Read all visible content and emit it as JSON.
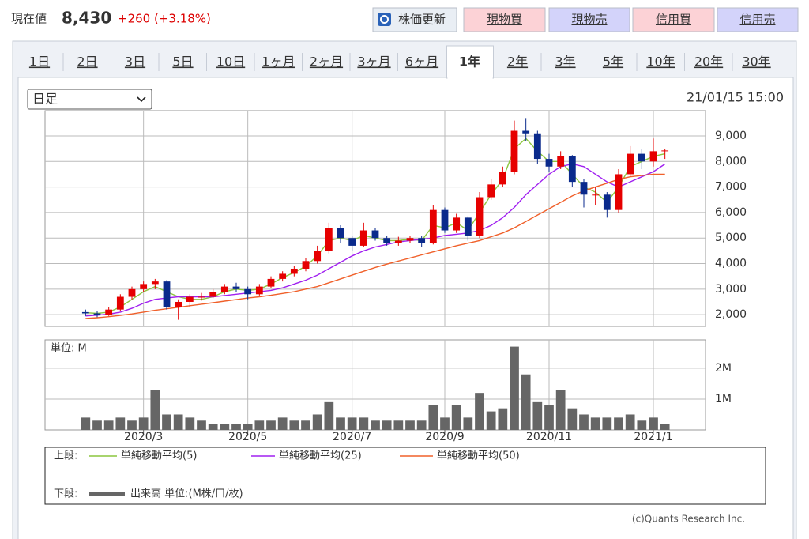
{
  "header": {
    "label": "現在値",
    "price": "8,430",
    "change": "+260 (+3.18%)"
  },
  "buttons": [
    "株価更新",
    "現物買",
    "現物売",
    "信用買",
    "信用売"
  ],
  "tabs": [
    "1日",
    "2日",
    "3日",
    "5日",
    "10日",
    "1ヶ月",
    "2ヶ月",
    "3ヶ月",
    "6ヶ月",
    "1年",
    "2年",
    "3年",
    "5年",
    "10年",
    "20年",
    "30年"
  ],
  "selected_tab": 9,
  "select": "日足",
  "timestamp": "21/01/15 15:00",
  "chart_data": {
    "type": "candlestick",
    "grid": true,
    "upper_label": "上段:",
    "categories": [
      null,
      null,
      null,
      null,
      null,
      null,
      null,
      null,
      "2020/3",
      null,
      null,
      null,
      null,
      null,
      null,
      null,
      null,
      "2020/5",
      null,
      null,
      null,
      null,
      null,
      null,
      null,
      null,
      "2020/7",
      null,
      null,
      null,
      null,
      null,
      null,
      null,
      "2020/9",
      null,
      null,
      null,
      null,
      null,
      null,
      null,
      null,
      "2020/11",
      null,
      null,
      null,
      null,
      null,
      null,
      null,
      null,
      "2021/1",
      null,
      null,
      null,
      null
    ],
    "up_color": "#e60000",
    "down_color": "#0a2a8c",
    "ohlc": [
      null,
      null,
      null,
      [
        2100,
        2200,
        1950,
        2050
      ],
      [
        2050,
        2150,
        1900,
        2000
      ],
      [
        2000,
        2300,
        1950,
        2200
      ],
      [
        2200,
        2800,
        2150,
        2700
      ],
      [
        2700,
        3100,
        2600,
        3000
      ],
      [
        3000,
        3300,
        2900,
        3200
      ],
      [
        3200,
        3400,
        3000,
        3300
      ],
      [
        3300,
        3350,
        2200,
        2300
      ],
      [
        2300,
        2600,
        1800,
        2500
      ],
      [
        2500,
        2800,
        2300,
        2700
      ],
      [
        2700,
        2850,
        2550,
        2700
      ],
      [
        2700,
        3000,
        2650,
        2900
      ],
      [
        2900,
        3200,
        2800,
        3100
      ],
      [
        3100,
        3250,
        2900,
        3000
      ],
      [
        3000,
        3100,
        2600,
        2800
      ],
      [
        2800,
        3200,
        2750,
        3100
      ],
      [
        3100,
        3500,
        3050,
        3400
      ],
      [
        3400,
        3700,
        3300,
        3600
      ],
      [
        3600,
        3900,
        3500,
        3800
      ],
      [
        3800,
        4200,
        3700,
        4100
      ],
      [
        4100,
        4700,
        4000,
        4500
      ],
      [
        4500,
        5600,
        4400,
        5400
      ],
      [
        5400,
        5500,
        4800,
        5000
      ],
      [
        5000,
        5100,
        4500,
        4700
      ],
      [
        4700,
        5600,
        4650,
        5300
      ],
      [
        5300,
        5400,
        4900,
        5000
      ],
      [
        5000,
        5100,
        4700,
        4800
      ],
      [
        4800,
        5050,
        4700,
        4900
      ],
      [
        4900,
        5100,
        4800,
        5000
      ],
      [
        5000,
        5100,
        4650,
        4800
      ],
      [
        4800,
        6300,
        4750,
        6100
      ],
      [
        6100,
        6200,
        5200,
        5300
      ],
      [
        5300,
        5950,
        5200,
        5800
      ],
      [
        5800,
        5850,
        4900,
        5100
      ],
      [
        5100,
        6800,
        5000,
        6600
      ],
      [
        6600,
        7300,
        6500,
        7100
      ],
      [
        7100,
        7800,
        7000,
        7600
      ],
      [
        7600,
        9600,
        7500,
        9200
      ],
      [
        9200,
        9700,
        8800,
        9100
      ],
      [
        9100,
        9200,
        7900,
        8100
      ],
      [
        8100,
        8300,
        7600,
        7800
      ],
      [
        7800,
        8400,
        7700,
        8200
      ],
      [
        8200,
        8250,
        7000,
        7200
      ],
      [
        7200,
        7300,
        6200,
        6700
      ],
      [
        6700,
        7000,
        6300,
        6700
      ],
      [
        6700,
        6800,
        5800,
        6100
      ],
      [
        6100,
        7700,
        6000,
        7500
      ],
      [
        7500,
        8600,
        7400,
        8300
      ],
      [
        8300,
        8500,
        7700,
        8000
      ],
      [
        8000,
        8900,
        7800,
        8400
      ],
      [
        8400,
        8500,
        8100,
        8430
      ],
      null,
      null,
      null
    ],
    "series": [
      {
        "name": "単純移動平均(5)",
        "color": "#8cc63e",
        "values": [
          null,
          null,
          null,
          2080,
          2050,
          2100,
          2300,
          2600,
          2900,
          3100,
          2900,
          2700,
          2600,
          2600,
          2700,
          2900,
          3000,
          2950,
          3000,
          3200,
          3450,
          3650,
          3900,
          4300,
          4900,
          5000,
          4900,
          5100,
          5000,
          4900,
          4900,
          4950,
          4900,
          5500,
          5400,
          5600,
          5300,
          6000,
          6700,
          7300,
          8500,
          8900,
          8400,
          8000,
          8000,
          7500,
          7000,
          6800,
          6400,
          7000,
          7800,
          8000,
          8200,
          8300,
          null,
          null,
          null
        ]
      },
      {
        "name": "単純移動平均(25)",
        "color": "#a020f0",
        "values": [
          null,
          null,
          null,
          1950,
          1980,
          2020,
          2100,
          2250,
          2450,
          2600,
          2650,
          2700,
          2700,
          2700,
          2700,
          2750,
          2800,
          2850,
          2900,
          2950,
          3050,
          3200,
          3350,
          3550,
          3800,
          4050,
          4300,
          4500,
          4650,
          4750,
          4850,
          4900,
          4950,
          5000,
          5100,
          5150,
          5200,
          5300,
          5500,
          5800,
          6200,
          6700,
          7100,
          7500,
          7800,
          7900,
          7800,
          7500,
          7200,
          7000,
          7200,
          7400,
          7600,
          7900,
          null,
          null,
          null
        ]
      },
      {
        "name": "単純移動平均(50)",
        "color": "#f0602a",
        "values": [
          null,
          null,
          null,
          1850,
          1880,
          1920,
          1970,
          2030,
          2100,
          2170,
          2230,
          2290,
          2350,
          2410,
          2470,
          2530,
          2590,
          2650,
          2700,
          2760,
          2830,
          2900,
          3000,
          3100,
          3250,
          3400,
          3550,
          3700,
          3850,
          3980,
          4100,
          4220,
          4340,
          4460,
          4580,
          4700,
          4800,
          4900,
          5050,
          5200,
          5400,
          5650,
          5900,
          6150,
          6400,
          6650,
          6850,
          7000,
          7150,
          7300,
          7400,
          7450,
          7500,
          7500,
          null,
          null,
          null
        ]
      }
    ],
    "ylim": [
      1540,
      9990
    ],
    "yticks": [
      {
        "value": 2000,
        "label": "2,000"
      },
      {
        "value": 3000,
        "label": "3,000"
      },
      {
        "value": 4000,
        "label": "4,000"
      },
      {
        "value": 5000,
        "label": "5,000"
      },
      {
        "value": 6000,
        "label": "6,000"
      },
      {
        "value": 7000,
        "label": "7,000"
      },
      {
        "value": 8000,
        "label": "8,000"
      },
      {
        "value": 9000,
        "label": "9,000"
      }
    ],
    "volume": {
      "panel_label": "下段:",
      "name": "出来高 単位:(M株/口/枚)",
      "unit_label": "単位: M",
      "color": "#666666",
      "values": [
        null,
        null,
        null,
        0.4,
        0.3,
        0.3,
        0.4,
        0.3,
        0.4,
        1.3,
        0.5,
        0.5,
        0.4,
        0.3,
        0.2,
        0.2,
        0.2,
        0.2,
        0.3,
        0.3,
        0.4,
        0.3,
        0.3,
        0.5,
        0.9,
        0.4,
        0.4,
        0.4,
        0.3,
        0.3,
        0.3,
        0.3,
        0.3,
        0.8,
        0.4,
        0.8,
        0.4,
        1.2,
        0.6,
        0.7,
        2.7,
        1.8,
        0.9,
        0.8,
        1.3,
        0.7,
        0.5,
        0.4,
        0.4,
        0.4,
        0.5,
        0.3,
        0.4,
        0.2,
        null,
        null,
        null
      ],
      "ylim": [
        0,
        2.92
      ],
      "yticks": [
        {
          "value": 1,
          "label": "1M"
        },
        {
          "value": 2,
          "label": "2M"
        }
      ]
    }
  },
  "copyright": "(c)Quants Research Inc."
}
